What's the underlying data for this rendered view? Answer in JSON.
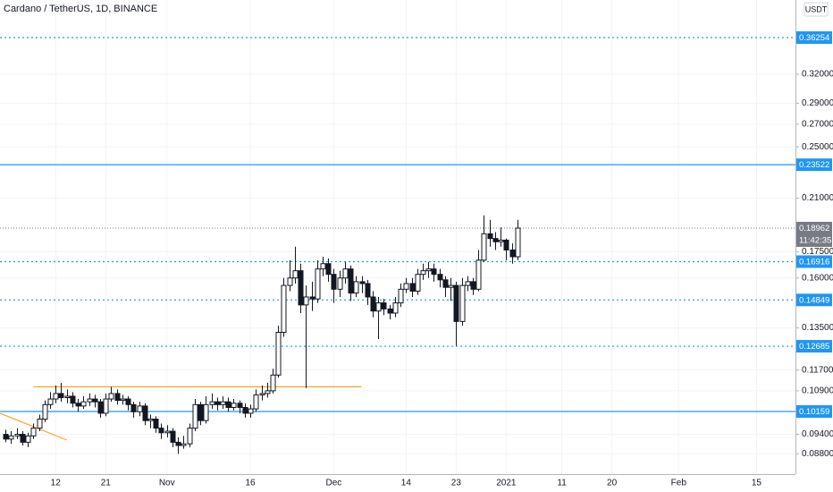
{
  "chart_data": {
    "type": "candlestick",
    "title": "Cardano / TetherUS, 1D, BINANCE",
    "currency_button": "USDT",
    "countdown": "11:42:35",
    "log_scale": true,
    "grid": true,
    "up_color": "#ffffff",
    "down_color": "#131722",
    "wick_color": "#131722",
    "x": [
      "2020-10-03",
      "2020-10-04",
      "2020-10-05",
      "2020-10-06",
      "2020-10-07",
      "2020-10-08",
      "2020-10-09",
      "2020-10-10",
      "2020-10-11",
      "2020-10-12",
      "2020-10-13",
      "2020-10-14",
      "2020-10-15",
      "2020-10-16",
      "2020-10-17",
      "2020-10-18",
      "2020-10-19",
      "2020-10-20",
      "2020-10-21",
      "2020-10-22",
      "2020-10-23",
      "2020-10-24",
      "2020-10-25",
      "2020-10-26",
      "2020-10-27",
      "2020-10-28",
      "2020-10-29",
      "2020-10-30",
      "2020-10-31",
      "2020-11-01",
      "2020-11-02",
      "2020-11-03",
      "2020-11-04",
      "2020-11-05",
      "2020-11-06",
      "2020-11-07",
      "2020-11-08",
      "2020-11-09",
      "2020-11-10",
      "2020-11-11",
      "2020-11-12",
      "2020-11-13",
      "2020-11-14",
      "2020-11-15",
      "2020-11-16",
      "2020-11-17",
      "2020-11-18",
      "2020-11-19",
      "2020-11-20",
      "2020-11-21",
      "2020-11-22",
      "2020-11-23",
      "2020-11-24",
      "2020-11-25",
      "2020-11-26",
      "2020-11-27",
      "2020-11-28",
      "2020-11-29",
      "2020-11-30",
      "2020-12-01",
      "2020-12-02",
      "2020-12-03",
      "2020-12-04",
      "2020-12-05",
      "2020-12-06",
      "2020-12-07",
      "2020-12-08",
      "2020-12-09",
      "2020-12-10",
      "2020-12-11",
      "2020-12-12",
      "2020-12-13",
      "2020-12-14",
      "2020-12-15",
      "2020-12-16",
      "2020-12-17",
      "2020-12-18",
      "2020-12-19",
      "2020-12-20",
      "2020-12-21",
      "2020-12-22",
      "2020-12-23",
      "2020-12-24",
      "2020-12-25",
      "2020-12-26",
      "2020-12-27",
      "2020-12-28",
      "2020-12-29",
      "2020-12-30",
      "2020-12-31",
      "2021-01-01",
      "2021-01-02",
      "2021-01-03"
    ],
    "open": [
      0.094,
      0.0925,
      0.0935,
      0.094,
      0.0915,
      0.0935,
      0.096,
      0.099,
      0.104,
      0.106,
      0.108,
      0.1065,
      0.107,
      0.1045,
      0.1035,
      0.105,
      0.106,
      0.105,
      0.101,
      0.106,
      0.108,
      0.1055,
      0.106,
      0.104,
      0.1015,
      0.1035,
      0.0985,
      0.099,
      0.096,
      0.0945,
      0.095,
      0.0915,
      0.0905,
      0.091,
      0.096,
      0.104,
      0.0985,
      0.104,
      0.105,
      0.104,
      0.105,
      0.103,
      0.1045,
      0.103,
      0.101,
      0.1025,
      0.1075,
      0.108,
      0.109,
      0.115,
      0.133,
      0.156,
      0.16,
      0.164,
      0.146,
      0.15,
      0.149,
      0.165,
      0.168,
      0.162,
      0.154,
      0.16,
      0.165,
      0.152,
      0.158,
      0.157,
      0.15,
      0.143,
      0.147,
      0.144,
      0.142,
      0.147,
      0.154,
      0.157,
      0.153,
      0.162,
      0.164,
      0.165,
      0.162,
      0.159,
      0.155,
      0.156,
      0.138,
      0.156,
      0.158,
      0.154,
      0.17,
      0.186,
      0.183,
      0.181,
      0.182,
      0.176,
      0.172
    ],
    "high": [
      0.0955,
      0.095,
      0.096,
      0.095,
      0.0945,
      0.0975,
      0.1005,
      0.1055,
      0.1085,
      0.111,
      0.112,
      0.1095,
      0.1085,
      0.106,
      0.107,
      0.108,
      0.1075,
      0.106,
      0.108,
      0.1105,
      0.1095,
      0.1075,
      0.107,
      0.105,
      0.105,
      0.1045,
      0.1005,
      0.1,
      0.0975,
      0.097,
      0.096,
      0.093,
      0.0935,
      0.0975,
      0.106,
      0.105,
      0.107,
      0.108,
      0.1065,
      0.107,
      0.1065,
      0.106,
      0.1055,
      0.1045,
      0.104,
      0.1095,
      0.111,
      0.112,
      0.1175,
      0.136,
      0.16,
      0.17,
      0.178,
      0.168,
      0.156,
      0.158,
      0.17,
      0.172,
      0.171,
      0.165,
      0.164,
      0.169,
      0.167,
      0.161,
      0.161,
      0.159,
      0.153,
      0.15,
      0.149,
      0.146,
      0.15,
      0.157,
      0.16,
      0.16,
      0.165,
      0.168,
      0.169,
      0.168,
      0.165,
      0.161,
      0.16,
      0.158,
      0.16,
      0.161,
      0.16,
      0.176,
      0.198,
      0.195,
      0.187,
      0.19,
      0.183,
      0.18,
      0.195
    ],
    "low": [
      0.0915,
      0.091,
      0.0925,
      0.0905,
      0.09,
      0.0925,
      0.095,
      0.098,
      0.1025,
      0.1045,
      0.105,
      0.1045,
      0.103,
      0.1015,
      0.1025,
      0.1035,
      0.103,
      0.0995,
      0.1,
      0.105,
      0.104,
      0.104,
      0.102,
      0.0995,
      0.1,
      0.097,
      0.096,
      0.0945,
      0.0925,
      0.093,
      0.09,
      0.088,
      0.0895,
      0.09,
      0.095,
      0.097,
      0.0975,
      0.1025,
      0.102,
      0.1025,
      0.1015,
      0.102,
      0.101,
      0.0995,
      0.0995,
      0.1015,
      0.1055,
      0.1065,
      0.108,
      0.114,
      0.131,
      0.153,
      0.157,
      0.142,
      0.11,
      0.143,
      0.147,
      0.161,
      0.158,
      0.147,
      0.15,
      0.157,
      0.148,
      0.15,
      0.152,
      0.146,
      0.14,
      0.13,
      0.141,
      0.139,
      0.14,
      0.145,
      0.152,
      0.15,
      0.151,
      0.159,
      0.16,
      0.158,
      0.155,
      0.15,
      0.148,
      0.127,
      0.136,
      0.153,
      0.151,
      0.153,
      0.169,
      0.178,
      0.176,
      0.178,
      0.17,
      0.168,
      0.17
    ],
    "close": [
      0.0925,
      0.0935,
      0.094,
      0.0915,
      0.0935,
      0.096,
      0.099,
      0.104,
      0.106,
      0.108,
      0.1065,
      0.107,
      0.1045,
      0.1035,
      0.105,
      0.106,
      0.105,
      0.101,
      0.106,
      0.108,
      0.1055,
      0.106,
      0.104,
      0.1015,
      0.1035,
      0.0985,
      0.099,
      0.096,
      0.0945,
      0.095,
      0.0915,
      0.0905,
      0.091,
      0.096,
      0.104,
      0.0985,
      0.104,
      0.105,
      0.104,
      0.105,
      0.103,
      0.1045,
      0.103,
      0.101,
      0.1025,
      0.1075,
      0.108,
      0.109,
      0.115,
      0.133,
      0.156,
      0.16,
      0.164,
      0.146,
      0.15,
      0.149,
      0.165,
      0.168,
      0.162,
      0.154,
      0.16,
      0.165,
      0.152,
      0.158,
      0.157,
      0.15,
      0.143,
      0.147,
      0.144,
      0.142,
      0.147,
      0.154,
      0.157,
      0.153,
      0.162,
      0.164,
      0.165,
      0.162,
      0.159,
      0.155,
      0.156,
      0.138,
      0.156,
      0.158,
      0.154,
      0.17,
      0.186,
      0.183,
      0.181,
      0.182,
      0.176,
      0.172,
      0.1896
    ],
    "xlim": [
      "2020-10-02",
      "2021-02-22"
    ],
    "xticks": [
      {
        "value": "2020-10-12",
        "label": "12"
      },
      {
        "value": "2020-10-21",
        "label": "21"
      },
      {
        "value": "2020-11-01",
        "label": "Nov"
      },
      {
        "value": "2020-11-16",
        "label": "16"
      },
      {
        "value": "2020-12-01",
        "label": "Dec"
      },
      {
        "value": "2020-12-14",
        "label": "14"
      },
      {
        "value": "2020-12-23",
        "label": "23"
      },
      {
        "value": "2021-01-01",
        "label": "2021"
      },
      {
        "value": "2021-01-11",
        "label": "11"
      },
      {
        "value": "2021-01-20",
        "label": "20"
      },
      {
        "value": "2021-02-01",
        "label": "Feb"
      },
      {
        "value": "2021-02-15",
        "label": "15"
      }
    ],
    "ylim": [
      0.0821,
      0.412
    ],
    "yticks": [
      {
        "value": 0.088,
        "label": "0.08800"
      },
      {
        "value": 0.094,
        "label": "0.09400"
      },
      {
        "value": 0.109,
        "label": "0.10900"
      },
      {
        "value": 0.117,
        "label": "0.11700"
      },
      {
        "value": 0.135,
        "label": "0.13500"
      },
      {
        "value": 0.16,
        "label": "0.16000"
      },
      {
        "value": 0.175,
        "label": "0.17500"
      },
      {
        "value": 0.21,
        "label": "0.21000"
      },
      {
        "value": 0.25,
        "label": "0.25000"
      },
      {
        "value": 0.27,
        "label": "0.27000"
      },
      {
        "value": 0.29,
        "label": "0.29000"
      },
      {
        "value": 0.32,
        "label": "0.32000"
      }
    ],
    "levels": [
      {
        "value": 0.36254,
        "style": "dotted",
        "color": "#2196f3"
      },
      {
        "value": 0.23522,
        "style": "solid",
        "color": "#2196f3"
      },
      {
        "value": 0.16916,
        "style": "dotted",
        "color": "#2196f3"
      },
      {
        "value": 0.14849,
        "style": "dotted",
        "color": "#2196f3"
      },
      {
        "value": 0.12685,
        "style": "dotted",
        "color": "#2196f3"
      },
      {
        "value": 0.10159,
        "style": "solid",
        "color": "#2196f3"
      }
    ],
    "last_price": {
      "value": 0.18962,
      "color": "#787b86"
    },
    "trendlines": [
      {
        "x": [
          "2020-10-08",
          "2020-12-06"
        ],
        "y": [
          0.1105,
          0.1105
        ],
        "color": "#f5a623"
      },
      {
        "x": [
          "2020-10-02",
          "2020-10-14"
        ],
        "y": [
          0.101,
          0.0922
        ],
        "color": "#f5a623"
      }
    ]
  }
}
